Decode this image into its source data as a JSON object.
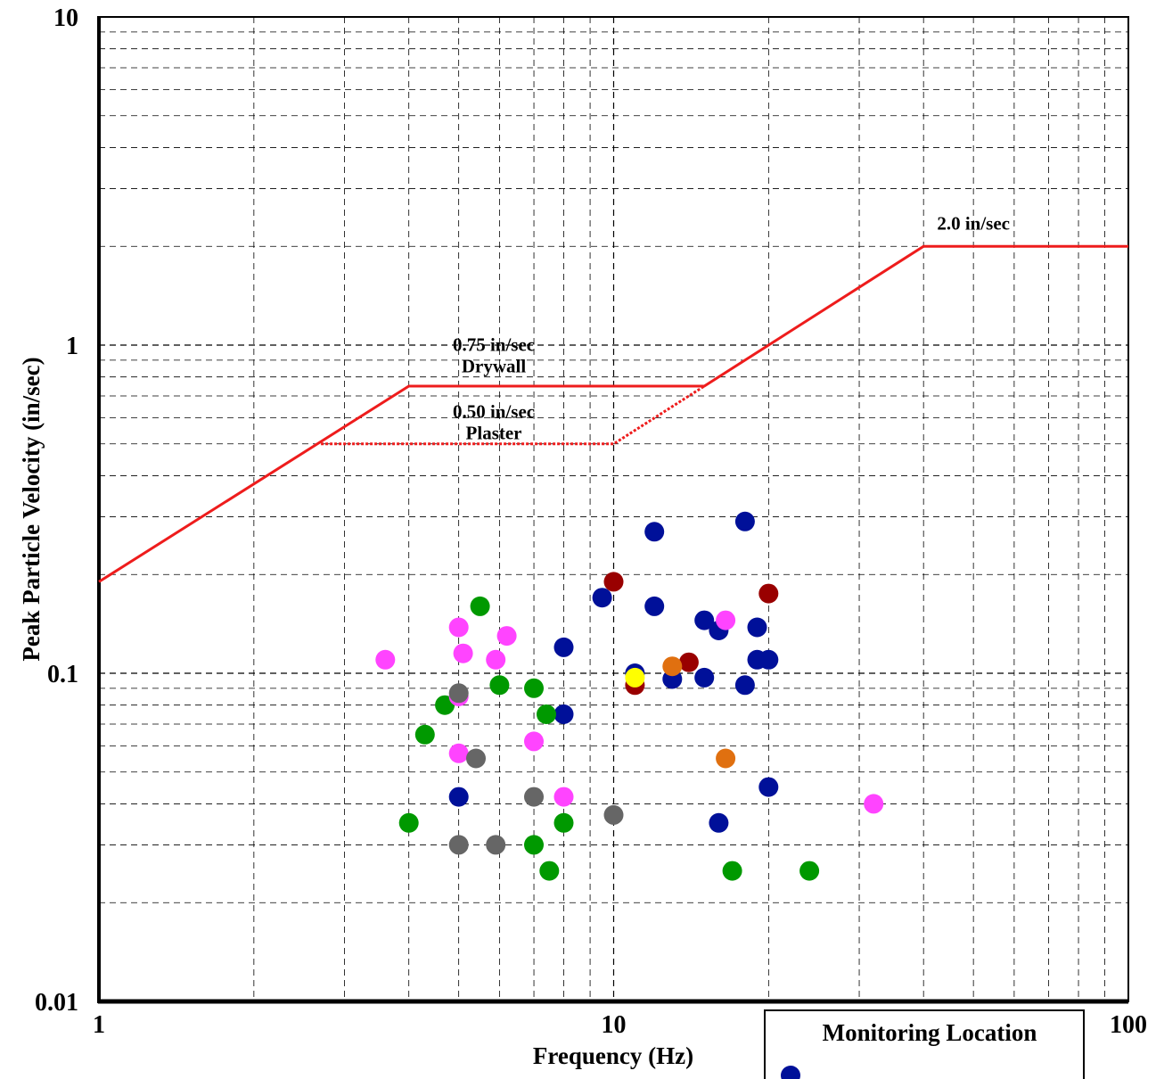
{
  "chart_data": {
    "type": "scatter",
    "title": "",
    "xlabel": "Frequency (Hz)",
    "ylabel": "Peak Particle Velocity (in/sec)",
    "x_scale": "log",
    "y_scale": "log",
    "xlim": [
      1,
      100
    ],
    "ylim": [
      0.01,
      10
    ],
    "x_tick_labels": [
      "1",
      "10",
      "100"
    ],
    "y_tick_labels": [
      "0.01",
      "0.1",
      "1",
      "10"
    ],
    "grid": true,
    "legend_title": "Monitoring Location",
    "limit_curves": [
      {
        "label": "0.75 in/sec Drywall",
        "style": "solid",
        "color": "#ee1c1c",
        "points": [
          [
            1,
            0.19
          ],
          [
            4,
            0.75
          ],
          [
            15,
            0.75
          ],
          [
            40,
            2.0
          ],
          [
            100,
            2.0
          ]
        ]
      },
      {
        "label": "0.50 in/sec Plaster",
        "style": "dotted",
        "color": "#ee1c1c",
        "points": [
          [
            2.7,
            0.5
          ],
          [
            10,
            0.5
          ],
          [
            15,
            0.75
          ]
        ]
      }
    ],
    "annotations": [
      {
        "lines": [
          "2.0 in/sec"
        ],
        "x": 50,
        "y": 2.25
      },
      {
        "lines": [
          "0.75 in/sec",
          "Drywall"
        ],
        "x": 5.85,
        "y": 0.96
      },
      {
        "lines": [
          "0.50 in/sec",
          "Plaster"
        ],
        "x": 5.85,
        "y": 0.6
      }
    ],
    "series": [
      {
        "color": "#001099",
        "points": [
          [
            5,
            0.042
          ],
          [
            8,
            0.12
          ],
          [
            8,
            0.075
          ],
          [
            9.5,
            0.17
          ],
          [
            11,
            0.1
          ],
          [
            12,
            0.27
          ],
          [
            12,
            0.16
          ],
          [
            13,
            0.096
          ],
          [
            15,
            0.145
          ],
          [
            15,
            0.097
          ],
          [
            16,
            0.135
          ],
          [
            16,
            0.035
          ],
          [
            18,
            0.29
          ],
          [
            18,
            0.092
          ],
          [
            19,
            0.138
          ],
          [
            19,
            0.11
          ],
          [
            20,
            0.11
          ],
          [
            20,
            0.045
          ]
        ]
      },
      {
        "color": "#990000",
        "points": [
          [
            10,
            0.19
          ],
          [
            11,
            0.092
          ],
          [
            14,
            0.108
          ],
          [
            20,
            0.175
          ]
        ]
      },
      {
        "color": "#009900",
        "points": [
          [
            4,
            0.035
          ],
          [
            4.3,
            0.065
          ],
          [
            4.7,
            0.08
          ],
          [
            5.5,
            0.16
          ],
          [
            6,
            0.092
          ],
          [
            7,
            0.09
          ],
          [
            7,
            0.03
          ],
          [
            7.4,
            0.075
          ],
          [
            7.5,
            0.025
          ],
          [
            8,
            0.035
          ],
          [
            17,
            0.025
          ],
          [
            24,
            0.025
          ]
        ]
      },
      {
        "color": "#ff44ff",
        "points": [
          [
            3.6,
            0.11
          ],
          [
            5,
            0.138
          ],
          [
            5,
            0.085
          ],
          [
            5,
            0.057
          ],
          [
            5.1,
            0.115
          ],
          [
            5.9,
            0.11
          ],
          [
            6.2,
            0.13
          ],
          [
            7,
            0.062
          ],
          [
            8,
            0.042
          ],
          [
            16.5,
            0.145
          ],
          [
            32,
            0.04
          ]
        ]
      },
      {
        "color": "#666666",
        "points": [
          [
            5,
            0.087
          ],
          [
            5,
            0.03
          ],
          [
            5.4,
            0.055
          ],
          [
            5.9,
            0.03
          ],
          [
            7,
            0.042
          ],
          [
            10,
            0.037
          ]
        ]
      },
      {
        "color": "#e07010",
        "points": [
          [
            13,
            0.105
          ],
          [
            16.5,
            0.055
          ]
        ]
      },
      {
        "color": "#ffff00",
        "points": [
          [
            11,
            0.097
          ]
        ]
      }
    ]
  }
}
